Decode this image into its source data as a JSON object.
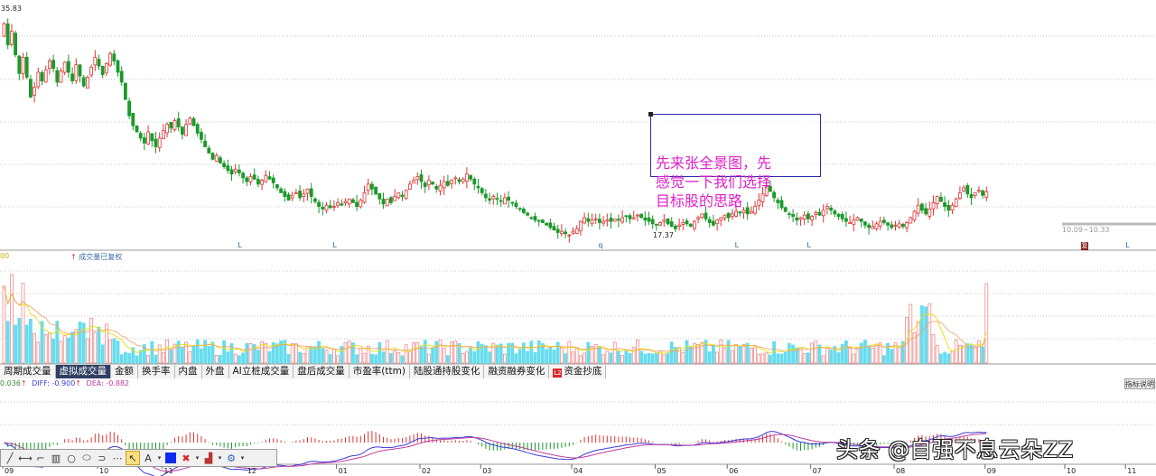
{
  "price_panel": {
    "top_price_label": "35.83",
    "low_price_label": "17.37",
    "range_label": "10.09~10.33",
    "event_markers": [
      {
        "text": "L",
        "bar": 62
      },
      {
        "text": "L",
        "bar": 87
      },
      {
        "text": "q",
        "bar": 157
      },
      {
        "text": "L",
        "bar": 193
      },
      {
        "text": "L",
        "bar": 212
      },
      {
        "text": "L",
        "bar": 296
      }
    ],
    "badge_text": "复"
  },
  "volume_panel": {
    "header_value": "00",
    "legend_text": "成交量已复权"
  },
  "annotation": {
    "text": "先来张全景图，先\n感觉一下我们选择\n目标股的思路"
  },
  "indicator_tabs": [
    {
      "label": "周期成交量",
      "active": false
    },
    {
      "label": "虚拟成交量",
      "active": true
    },
    {
      "label": "金额",
      "active": false
    },
    {
      "label": "换手率",
      "active": false
    },
    {
      "label": "内盘",
      "active": false
    },
    {
      "label": "外盘",
      "active": false
    },
    {
      "label": "AI立桩成交量",
      "active": false
    },
    {
      "label": "盘后成交量",
      "active": false
    },
    {
      "label": "市盈率(ttm)",
      "active": false
    },
    {
      "label": "陆股通持股变化",
      "active": false
    },
    {
      "label": "融资融券变化",
      "active": false
    },
    {
      "label": "资金抄底",
      "active": false,
      "icon": "L2"
    }
  ],
  "macd_panel": {
    "value_text": "0.036",
    "diff_text": "DIFF: -0.900",
    "dea_text": "DEA: -0.882",
    "help_button": "指标说明"
  },
  "time_axis": {
    "labels": [
      {
        "text": "09",
        "bar": 0
      },
      {
        "text": "10",
        "bar": 25
      },
      {
        "text": "11",
        "bar": 42
      },
      {
        "text": "12",
        "bar": 64
      },
      {
        "text": "01",
        "bar": 88
      },
      {
        "text": "02",
        "bar": 110
      },
      {
        "text": "03",
        "bar": 126
      },
      {
        "text": "04",
        "bar": 150
      },
      {
        "text": "05",
        "bar": 172
      },
      {
        "text": "06",
        "bar": 191
      },
      {
        "text": "07",
        "bar": 213
      },
      {
        "text": "08",
        "bar": 235
      },
      {
        "text": "09",
        "bar": 259
      },
      {
        "text": "10",
        "bar": 280
      },
      {
        "text": "11",
        "bar": 296
      }
    ]
  },
  "toolbar": {
    "tools": [
      "line-tool",
      "segment-tool",
      "crop-tool",
      "channel-tool",
      "circle-tool",
      "ellipse-tool",
      "arc-tool",
      "more-tool",
      "pointer-tool",
      "text-tool",
      "color-tool",
      "delete-tool",
      "brush-tool",
      "settings-tool"
    ]
  },
  "watermark": "头条 @自强不息云朵ZZ",
  "colors": {
    "up": "#e03434",
    "down": "#1a9a2a",
    "volume_up": "#f08a8a",
    "volume_down": "#66ddee",
    "ma_yellow": "#e8e020",
    "macd_diff": "#3a3adb",
    "macd_dea": "#c03aa0"
  },
  "chart_data": {
    "type": "candlestick",
    "price_max": 35.83,
    "price_min": 17.37,
    "closes": [
      34.5,
      32.8,
      33.9,
      32.0,
      30.5,
      31.8,
      30.2,
      28.6,
      29.4,
      30.6,
      29.9,
      30.8,
      31.5,
      30.9,
      29.8,
      30.7,
      31.4,
      30.6,
      29.9,
      31.2,
      30.3,
      29.5,
      30.2,
      31.0,
      31.8,
      31.1,
      30.4,
      31.3,
      32.1,
      31.5,
      30.6,
      29.8,
      28.4,
      27.1,
      26.3,
      25.8,
      25.3,
      24.9,
      25.8,
      25.1,
      24.6,
      25.3,
      25.9,
      26.4,
      26.1,
      26.7,
      26.2,
      25.6,
      26.4,
      26.9,
      26.3,
      25.7,
      25.2,
      24.6,
      24.1,
      23.6,
      23.9,
      23.3,
      23.0,
      22.7,
      22.4,
      22.8,
      22.5,
      22.1,
      21.8,
      22.2,
      22.0,
      21.6,
      21.9,
      22.3,
      22.0,
      21.7,
      21.3,
      20.9,
      20.6,
      20.3,
      20.7,
      20.9,
      20.5,
      20.8,
      21.2,
      20.6,
      20.2,
      19.8,
      19.6,
      19.9,
      19.7,
      19.8,
      20.1,
      19.9,
      20.2,
      20.4,
      20.1,
      19.8,
      20.3,
      20.9,
      21.6,
      21.2,
      20.8,
      20.4,
      20.0,
      20.4,
      20.1,
      20.6,
      20.9,
      20.6,
      21.1,
      21.6,
      21.9,
      22.2,
      21.8,
      21.4,
      21.9,
      21.6,
      21.2,
      21.5,
      21.8,
      21.5,
      21.9,
      22.1,
      21.8,
      22.0,
      22.4,
      22.0,
      21.6,
      21.3,
      20.9,
      20.5,
      20.3,
      20.6,
      20.4,
      20.2,
      20.5,
      20.3,
      20.1,
      19.8,
      19.6,
      19.3,
      19.1,
      18.9,
      18.7,
      18.6,
      18.5,
      18.3,
      18.1,
      17.9,
      17.7,
      17.8,
      17.6,
      17.5,
      17.8,
      18.0,
      18.6,
      18.9,
      18.6,
      18.7,
      18.8,
      18.5,
      18.6,
      18.7,
      18.6,
      18.8,
      18.7,
      18.9,
      19.0,
      18.8,
      18.9,
      19.1,
      18.9,
      18.7,
      18.6,
      18.4,
      18.3,
      18.5,
      18.7,
      18.4,
      18.2,
      18.0,
      18.3,
      18.5,
      18.4,
      18.2,
      18.6,
      18.9,
      19.2,
      18.8,
      18.5,
      18.3,
      18.7,
      18.9,
      19.1,
      18.9,
      19.2,
      19.4,
      19.3,
      19.5,
      19.2,
      19.4,
      19.8,
      20.3,
      20.8,
      21.4,
      21.0,
      20.5,
      20.1,
      19.7,
      19.4,
      19.2,
      19.0,
      18.7,
      18.9,
      19.1,
      18.8,
      19.0,
      19.3,
      19.1,
      19.5,
      19.8,
      19.5,
      19.2,
      19.0,
      18.8,
      18.6,
      18.5,
      18.7,
      18.9,
      18.6,
      18.3,
      18.1,
      18.2,
      18.4,
      18.6,
      18.5,
      18.3,
      18.1,
      18.3,
      18.4,
      18.2,
      18.5,
      18.9,
      19.4,
      19.9,
      19.5,
      19.2,
      19.6,
      20.1,
      20.6,
      20.2,
      19.8,
      19.5,
      19.9,
      20.4,
      20.9,
      21.3,
      20.8,
      20.5,
      20.9,
      21.1,
      20.7,
      21.0
    ]
  }
}
